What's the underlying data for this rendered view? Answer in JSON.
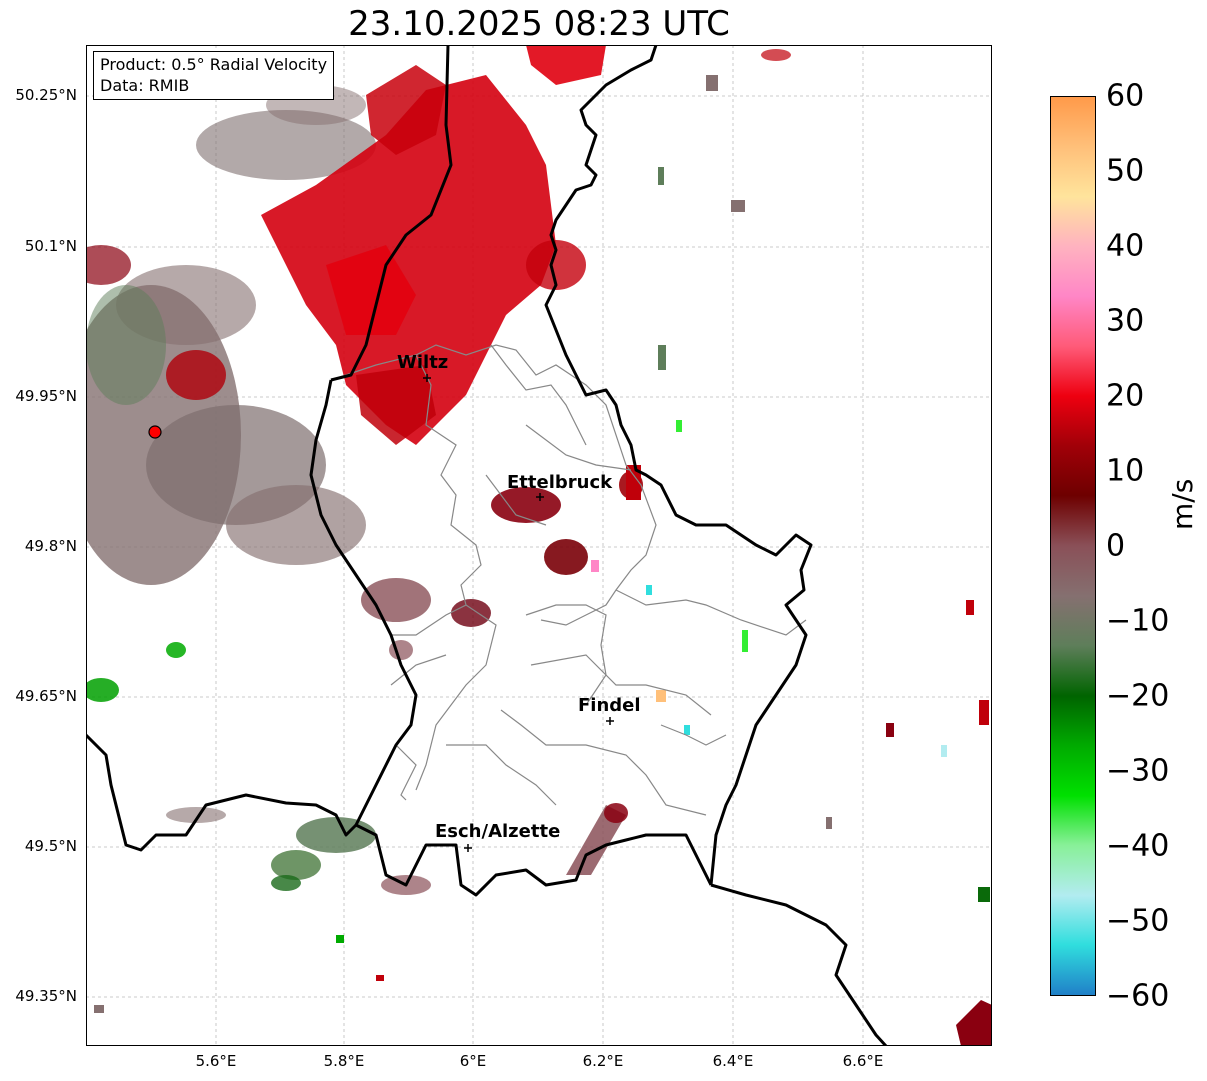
{
  "title": "23.10.2025 08:23 UTC",
  "info": {
    "product": "Product: 0.5° Radial Velocity",
    "data_source": "Data: RMIB"
  },
  "axes": {
    "y_ticks": [
      "50.25°N",
      "50.1°N",
      "49.95°N",
      "49.8°N",
      "49.65°N",
      "49.5°N",
      "49.35°N"
    ],
    "x_ticks": [
      "5.6°E",
      "5.8°E",
      "6°E",
      "6.2°E",
      "6.4°E",
      "6.6°E"
    ]
  },
  "cities": [
    "Wiltz",
    "Ettelbruck",
    "Findel",
    "Esch/Alzette"
  ],
  "colorbar": {
    "label": "m/s",
    "ticks": [
      "60",
      "50",
      "40",
      "30",
      "20",
      "10",
      "0",
      "−10",
      "−20",
      "−30",
      "−40",
      "−50",
      "−60"
    ],
    "min": -60,
    "max": 60,
    "colors": {
      "max": "#ff9a4a",
      "orange": "#ffc07a",
      "light_yellow": "#ffe49c",
      "pink_light": "#ffb2c0",
      "pink": "#ff86c6",
      "salmon": "#ff5a78",
      "red": "#ee0010",
      "dark_red": "#a00008",
      "maroon": "#6e0000",
      "brown_grey": "#8a5058",
      "grey": "#857070",
      "grey_green": "#5e7e5a",
      "dark_green": "#006400",
      "green": "#00aa00",
      "lime": "#00e000",
      "light_green": "#88f098",
      "pale_cyan": "#b2ecf0",
      "cyan": "#30dede",
      "blue": "#2080c8"
    }
  },
  "radar_site_color": "#ff0000"
}
